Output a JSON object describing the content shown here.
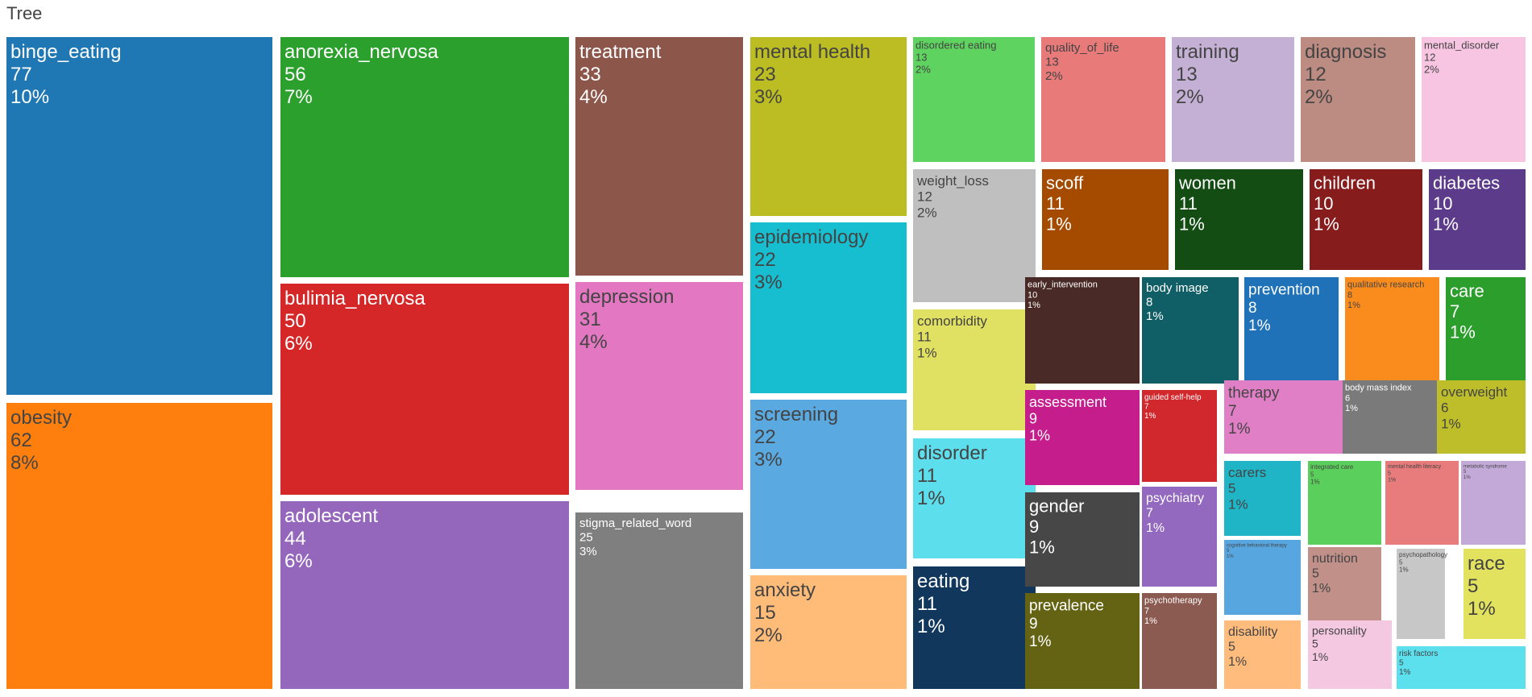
{
  "chart_data": {
    "type": "treemap",
    "title": "Tree",
    "items": [
      {
        "label": "binge_eating",
        "value": 77,
        "percent": "10%",
        "color": "#1f77b4",
        "text_color": "#ffffff"
      },
      {
        "label": "obesity",
        "value": 62,
        "percent": "8%",
        "color": "#ff7f0e",
        "text_color": "#444444"
      },
      {
        "label": "anorexia_nervosa",
        "value": 56,
        "percent": "7%",
        "color": "#2ca02c",
        "text_color": "#ffffff"
      },
      {
        "label": "bulimia_nervosa",
        "value": 50,
        "percent": "6%",
        "color": "#d62728",
        "text_color": "#ffffff"
      },
      {
        "label": "adolescent",
        "value": 44,
        "percent": "6%",
        "color": "#9467bd",
        "text_color": "#ffffff"
      },
      {
        "label": "treatment",
        "value": 33,
        "percent": "4%",
        "color": "#8c564b",
        "text_color": "#ffffff"
      },
      {
        "label": "depression",
        "value": 31,
        "percent": "4%",
        "color": "#e377c2",
        "text_color": "#444444"
      },
      {
        "label": "stigma_related_word",
        "value": 25,
        "percent": "3%",
        "color": "#7f7f7f",
        "text_color": "#ffffff"
      },
      {
        "label": "mental health",
        "value": 23,
        "percent": "3%",
        "color": "#bcbd22",
        "text_color": "#444444"
      },
      {
        "label": "epidemiology",
        "value": 22,
        "percent": "3%",
        "color": "#17becf",
        "text_color": "#444444"
      },
      {
        "label": "screening",
        "value": 22,
        "percent": "3%",
        "color": "#5aa9e0",
        "text_color": "#444444"
      },
      {
        "label": "anxiety",
        "value": 15,
        "percent": "2%",
        "color": "#ffbb78",
        "text_color": "#444444"
      },
      {
        "label": "disordered eating",
        "value": 13,
        "percent": "2%",
        "color": "#5fd35f",
        "text_color": "#444444"
      },
      {
        "label": "quality_of_life",
        "value": 13,
        "percent": "2%",
        "color": "#e87a7a",
        "text_color": "#444444"
      },
      {
        "label": "training",
        "value": 13,
        "percent": "2%",
        "color": "#c5b0d5",
        "text_color": "#444444"
      },
      {
        "label": "diagnosis",
        "value": 12,
        "percent": "2%",
        "color": "#bc8b81",
        "text_color": "#444444"
      },
      {
        "label": "mental_disorder",
        "value": 12,
        "percent": "2%",
        "color": "#f7c5e1",
        "text_color": "#444444"
      },
      {
        "label": "weight_loss",
        "value": 12,
        "percent": "2%",
        "color": "#bfbfbf",
        "text_color": "#444444"
      },
      {
        "label": "scoff",
        "value": 11,
        "percent": "1%",
        "color": "#a44b00",
        "text_color": "#ffffff"
      },
      {
        "label": "women",
        "value": 11,
        "percent": "1%",
        "color": "#134d13",
        "text_color": "#ffffff"
      },
      {
        "label": "children",
        "value": 10,
        "percent": "1%",
        "color": "#861c1c",
        "text_color": "#ffffff"
      },
      {
        "label": "diabetes",
        "value": 10,
        "percent": "1%",
        "color": "#5d3b8b",
        "text_color": "#ffffff"
      },
      {
        "label": "comorbidity",
        "value": 11,
        "percent": "1%",
        "color": "#e0e062",
        "text_color": "#444444"
      },
      {
        "label": "disorder",
        "value": 11,
        "percent": "1%",
        "color": "#5ddeed",
        "text_color": "#444444"
      },
      {
        "label": "eating",
        "value": 11,
        "percent": "1%",
        "color": "#11385c",
        "text_color": "#ffffff"
      },
      {
        "label": "early_intervention",
        "value": 10,
        "percent": "1%",
        "color": "#4a2a26",
        "text_color": "#ffffff"
      },
      {
        "label": "body image",
        "value": 8,
        "percent": "1%",
        "color": "#105e66",
        "text_color": "#ffffff"
      },
      {
        "label": "prevention",
        "value": 8,
        "percent": "1%",
        "color": "#2072b8",
        "text_color": "#ffffff"
      },
      {
        "label": "qualitative research",
        "value": 8,
        "percent": "1%",
        "color": "#fa8c1e",
        "text_color": "#444444"
      },
      {
        "label": "care",
        "value": 7,
        "percent": "1%",
        "color": "#2b9e2b",
        "text_color": "#ffffff"
      },
      {
        "label": "assessment",
        "value": 9,
        "percent": "1%",
        "color": "#c51e8c",
        "text_color": "#ffffff"
      },
      {
        "label": "guided self-help",
        "value": 7,
        "percent": "1%",
        "color": "#d0282c",
        "text_color": "#ffffff"
      },
      {
        "label": "therapy",
        "value": 7,
        "percent": "1%",
        "color": "#e07fc5",
        "text_color": "#444444"
      },
      {
        "label": "body mass index",
        "value": 6,
        "percent": "1%",
        "color": "#7a7a7a",
        "text_color": "#ffffff"
      },
      {
        "label": "overweight",
        "value": 6,
        "percent": "1%",
        "color": "#bebe2a",
        "text_color": "#444444"
      },
      {
        "label": "gender",
        "value": 9,
        "percent": "1%",
        "color": "#474747",
        "text_color": "#ffffff"
      },
      {
        "label": "psychiatry",
        "value": 7,
        "percent": "1%",
        "color": "#9369bf",
        "text_color": "#ffffff"
      },
      {
        "label": "carers",
        "value": 5,
        "percent": "1%",
        "color": "#1fb5c6",
        "text_color": "#444444"
      },
      {
        "label": "integrated care",
        "value": 5,
        "percent": "1%",
        "color": "#5bcf5b",
        "text_color": "#444444"
      },
      {
        "label": "mental health literacy",
        "value": 5,
        "percent": "1%",
        "color": "#e87c7c",
        "text_color": "#444444"
      },
      {
        "label": "metabolic syndrome",
        "value": 5,
        "percent": "1%",
        "color": "#c3a9d8",
        "text_color": "#444444"
      },
      {
        "label": "cognitive behavioral therapy",
        "value": 5,
        "percent": "1%",
        "color": "#58a6e0",
        "text_color": "#444444"
      },
      {
        "label": "nutrition",
        "value": 5,
        "percent": "1%",
        "color": "#c09089",
        "text_color": "#444444"
      },
      {
        "label": "psychopathology",
        "value": 5,
        "percent": "1%",
        "color": "#c7c7c7",
        "text_color": "#444444"
      },
      {
        "label": "race",
        "value": 5,
        "percent": "1%",
        "color": "#e2e25e",
        "text_color": "#444444"
      },
      {
        "label": "prevalence",
        "value": 9,
        "percent": "1%",
        "color": "#636313",
        "text_color": "#ffffff"
      },
      {
        "label": "psychotherapy",
        "value": 7,
        "percent": "1%",
        "color": "#8b5a50",
        "text_color": "#ffffff"
      },
      {
        "label": "disability",
        "value": 5,
        "percent": "1%",
        "color": "#ffbc7d",
        "text_color": "#444444"
      },
      {
        "label": "personality",
        "value": 5,
        "percent": "1%",
        "color": "#f5c8e2",
        "text_color": "#444444"
      },
      {
        "label": "risk factors",
        "value": 5,
        "percent": "1%",
        "color": "#5ce0ee",
        "text_color": "#444444"
      }
    ]
  }
}
